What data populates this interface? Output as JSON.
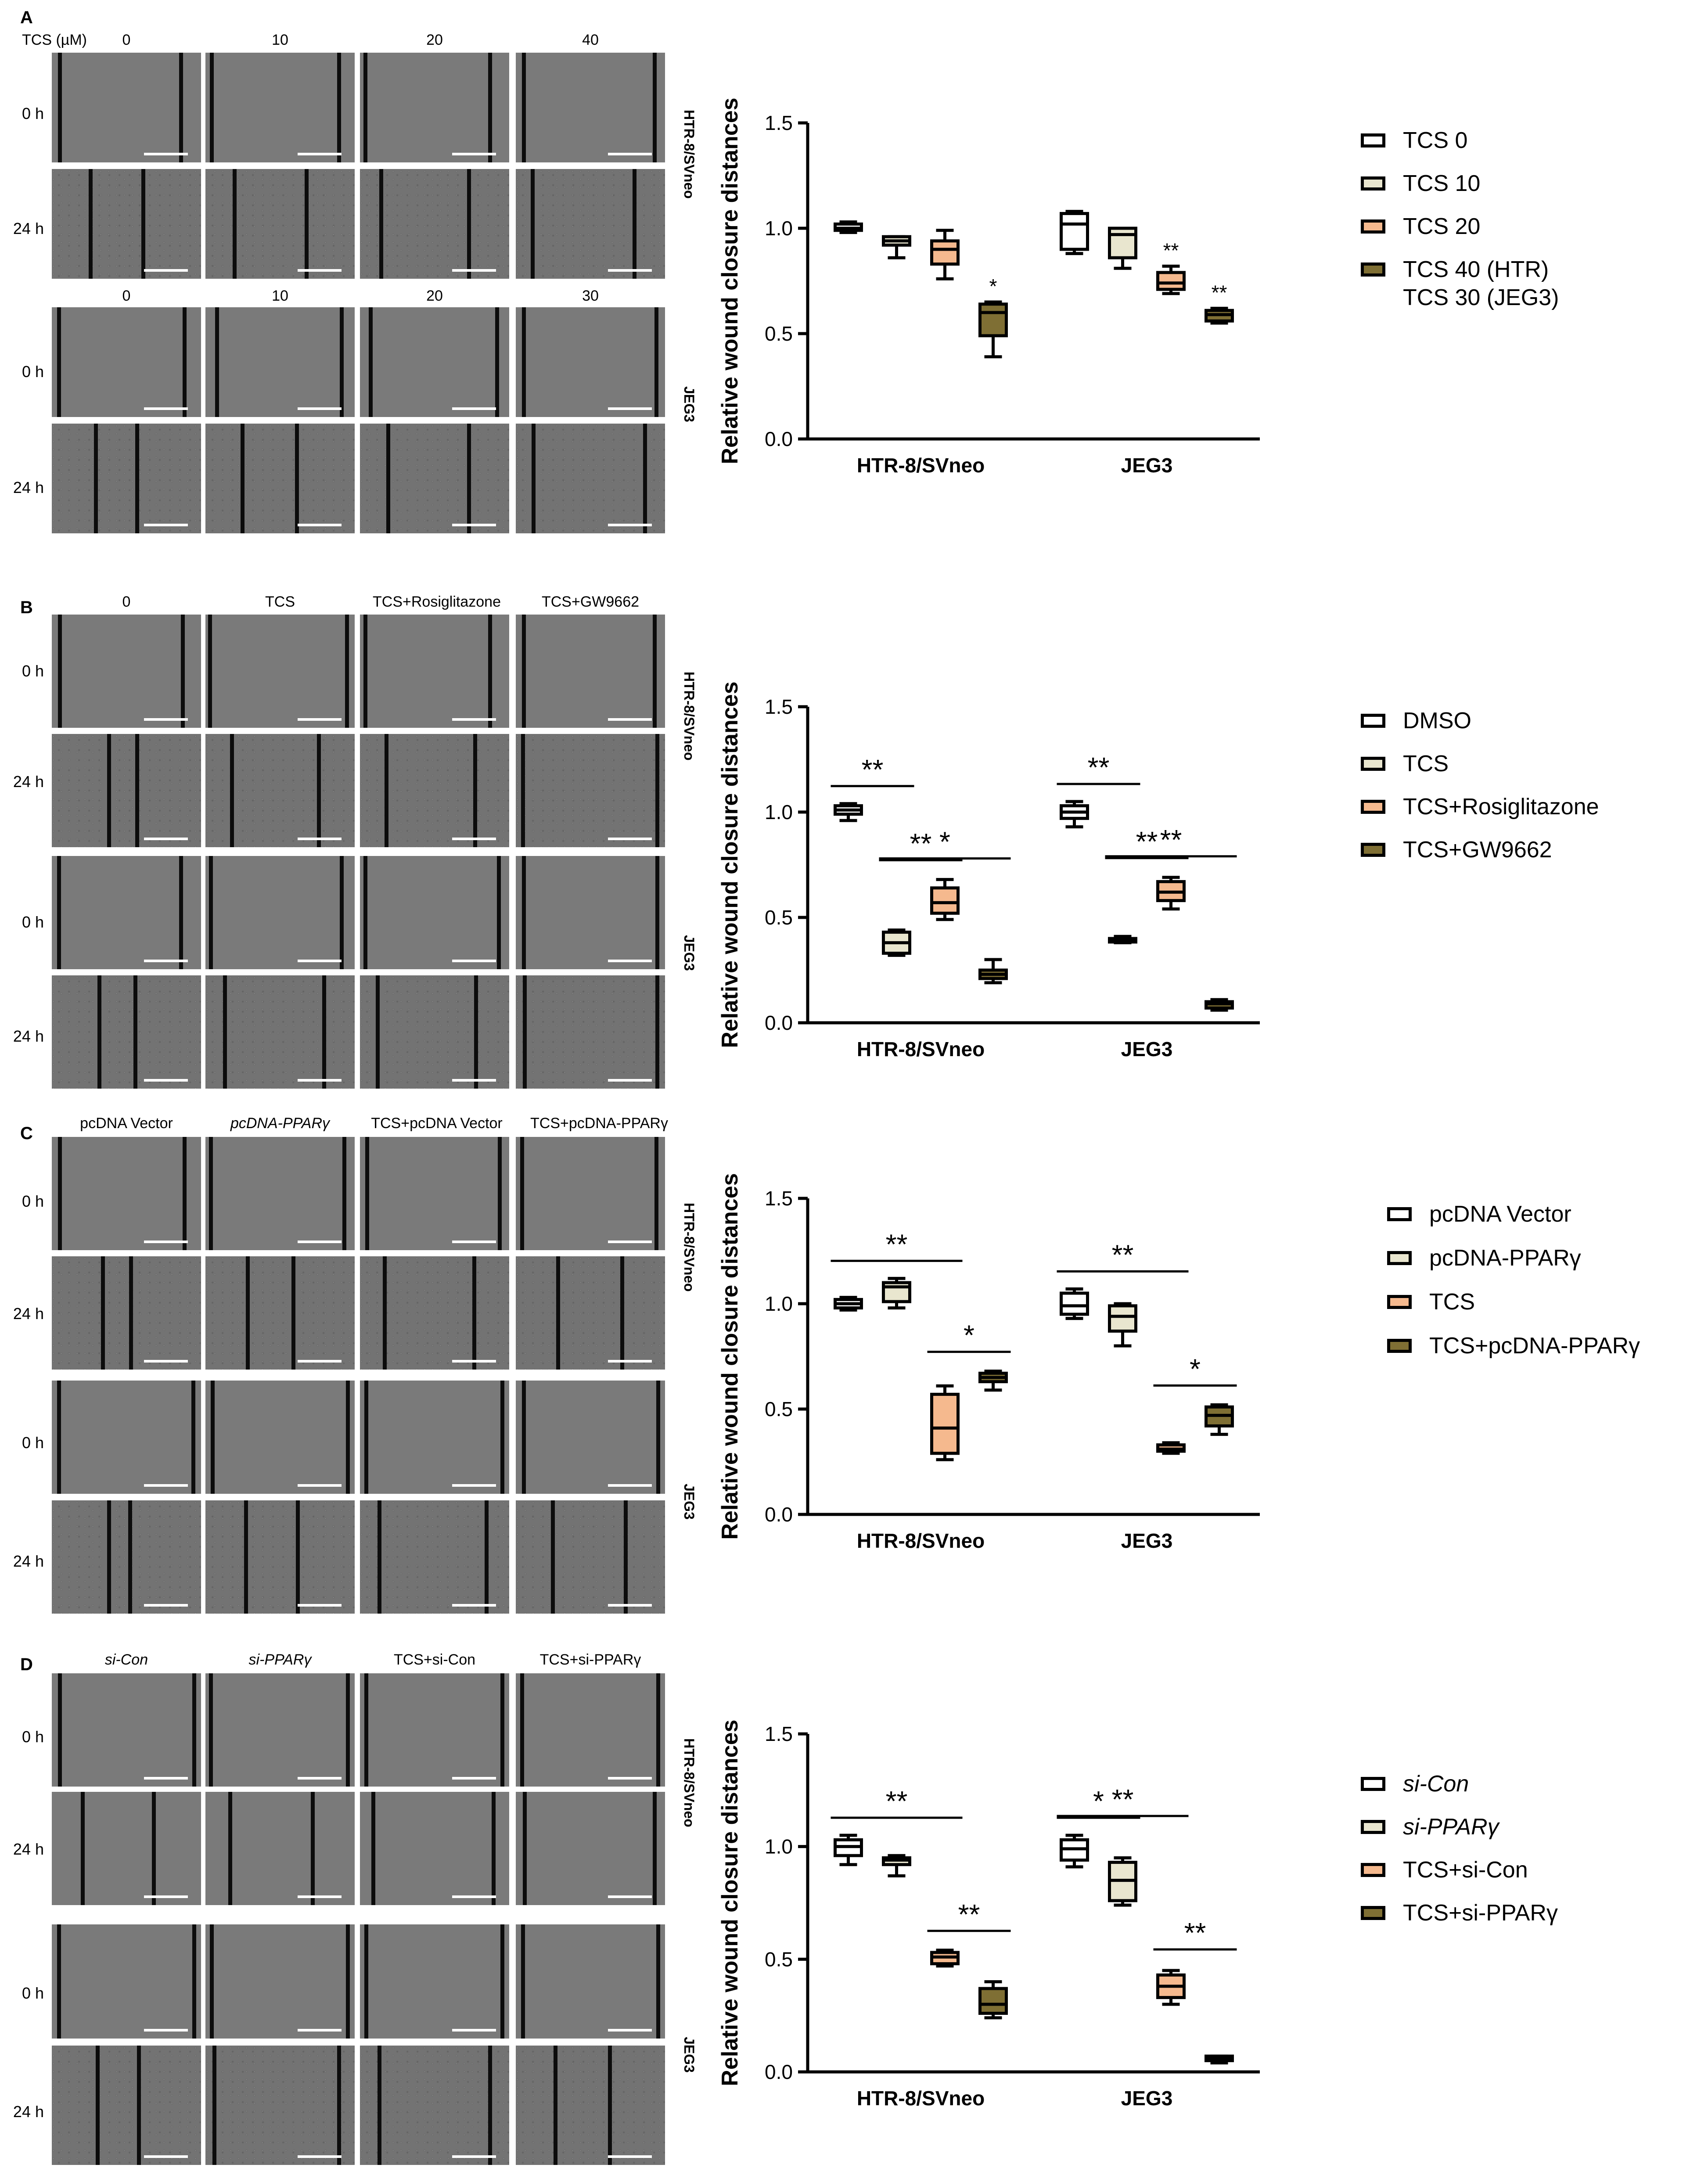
{
  "colors": {
    "tcs0": "#ffffff",
    "tcs10": "#e9e6cf",
    "tcs20": "#f5b98e",
    "tcs40": "#7f6f34",
    "stroke": "#000000"
  },
  "panels": [
    {
      "letter": "A",
      "header_prefix": "TCS (µM)",
      "htr_columns": [
        "0",
        "10",
        "20",
        "40"
      ],
      "jeg_columns": [
        "0",
        "10",
        "20",
        "30"
      ],
      "rows": [
        "0 h",
        "24 h",
        "0 h",
        "24 h"
      ],
      "cell_labels": [
        "HTR-8/SVneo",
        "JEG3"
      ],
      "legend": [
        "TCS 0",
        "TCS 10",
        "TCS 20",
        "TCS 40 (HTR)",
        "TCS 30 (JEG3)"
      ]
    },
    {
      "letter": "B",
      "columns": [
        "0",
        "TCS",
        "TCS+Rosiglitazone",
        "TCS+GW9662"
      ],
      "rows": [
        "0 h",
        "24 h",
        "0 h",
        "24 h"
      ],
      "cell_labels": [
        "HTR-8/SVneo",
        "JEG3"
      ],
      "legend": [
        "DMSO",
        "TCS",
        "TCS+Rosiglitazone",
        "TCS+GW9662"
      ]
    },
    {
      "letter": "C",
      "columns": [
        "pcDNA Vector",
        "pcDNA-PPARγ",
        "TCS+pcDNA Vector",
        "TCS+pcDNA-PPARγ"
      ],
      "rows": [
        "0 h",
        "24 h",
        "0 h",
        "24 h"
      ],
      "cell_labels": [
        "HTR-8/SVneo",
        "JEG3"
      ],
      "legend": [
        "pcDNA Vector",
        "pcDNA-PPARγ",
        "TCS",
        "TCS+pcDNA-PPARγ"
      ]
    },
    {
      "letter": "D",
      "columns": [
        "si-Con",
        "si-PPARγ",
        "TCS+si-Con",
        "TCS+si-PPARγ"
      ],
      "rows": [
        "0 h",
        "24 h",
        "0 h",
        "24 h"
      ],
      "cell_labels": [
        "HTR-8/SVneo",
        "JEG3"
      ],
      "legend": [
        "si-Con",
        "si-PPARγ",
        "TCS+si-Con",
        "TCS+si-PPARγ"
      ]
    }
  ],
  "chart_data": [
    {
      "type": "box",
      "title": "A",
      "ylabel": "Relative wound closure distances",
      "ylim": [
        0,
        1.5
      ],
      "yticks": [
        "0.0",
        "0.5",
        "1.0",
        "1.5"
      ],
      "categories": [
        "HTR-8/SVneo",
        "JEG3"
      ],
      "series": [
        {
          "name": "TCS 0",
          "boxes": [
            {
              "min": 0.98,
              "q1": 0.99,
              "median": 1.0,
              "q3": 1.02,
              "max": 1.03
            },
            {
              "min": 0.88,
              "q1": 0.9,
              "median": 1.02,
              "q3": 1.07,
              "max": 1.08
            }
          ]
        },
        {
          "name": "TCS 10",
          "boxes": [
            {
              "min": 0.86,
              "q1": 0.92,
              "median": 0.94,
              "q3": 0.96,
              "max": 0.96
            },
            {
              "min": 0.81,
              "q1": 0.86,
              "median": 0.97,
              "q3": 1.0,
              "max": 1.0
            }
          ]
        },
        {
          "name": "TCS 20",
          "boxes": [
            {
              "min": 0.76,
              "q1": 0.83,
              "median": 0.9,
              "q3": 0.94,
              "max": 0.99
            },
            {
              "min": 0.69,
              "q1": 0.71,
              "median": 0.74,
              "q3": 0.79,
              "max": 0.82
            }
          ]
        },
        {
          "name": "TCS 40 (HTR) / TCS 30 (JEG3)",
          "boxes": [
            {
              "min": 0.39,
              "q1": 0.49,
              "median": 0.6,
              "q3": 0.64,
              "max": 0.65
            },
            {
              "min": 0.55,
              "q1": 0.56,
              "median": 0.59,
              "q3": 0.61,
              "max": 0.62
            }
          ]
        }
      ],
      "annotations": [
        {
          "text": "*",
          "group": 0,
          "from": 3,
          "to": 3
        },
        {
          "text": "**",
          "group": 1,
          "from": 2,
          "to": 2
        },
        {
          "text": "**",
          "group": 1,
          "from": 3,
          "to": 3
        }
      ]
    },
    {
      "type": "box",
      "title": "B",
      "ylabel": "Relative wound closure distances",
      "ylim": [
        0,
        1.5
      ],
      "yticks": [
        "0.0",
        "0.5",
        "1.0",
        "1.5"
      ],
      "categories": [
        "HTR-8/SVneo",
        "JEG3"
      ],
      "series": [
        {
          "name": "DMSO",
          "boxes": [
            {
              "min": 0.96,
              "q1": 0.99,
              "median": 1.01,
              "q3": 1.03,
              "max": 1.04
            },
            {
              "min": 0.93,
              "q1": 0.97,
              "median": 1.0,
              "q3": 1.03,
              "max": 1.05
            }
          ]
        },
        {
          "name": "TCS",
          "boxes": [
            {
              "min": 0.32,
              "q1": 0.33,
              "median": 0.38,
              "q3": 0.43,
              "max": 0.44
            },
            {
              "min": 0.38,
              "q1": 0.39,
              "median": 0.39,
              "q3": 0.4,
              "max": 0.41
            }
          ]
        },
        {
          "name": "TCS+Rosiglitazone",
          "boxes": [
            {
              "min": 0.49,
              "q1": 0.52,
              "median": 0.57,
              "q3": 0.64,
              "max": 0.68
            },
            {
              "min": 0.54,
              "q1": 0.58,
              "median": 0.62,
              "q3": 0.67,
              "max": 0.69
            }
          ]
        },
        {
          "name": "TCS+GW9662",
          "boxes": [
            {
              "min": 0.19,
              "q1": 0.21,
              "median": 0.23,
              "q3": 0.25,
              "max": 0.3
            },
            {
              "min": 0.06,
              "q1": 0.07,
              "median": 0.09,
              "q3": 0.1,
              "max": 0.11
            }
          ]
        }
      ],
      "annotations": [
        {
          "text": "**",
          "group": 0,
          "from": 0,
          "to": 1
        },
        {
          "text": "**",
          "group": 0,
          "from": 1,
          "to": 2
        },
        {
          "text": "*",
          "group": 0,
          "from": 1,
          "to": 3
        },
        {
          "text": "**",
          "group": 1,
          "from": 0,
          "to": 1
        },
        {
          "text": "**",
          "group": 1,
          "from": 1,
          "to": 2
        },
        {
          "text": "**",
          "group": 1,
          "from": 1,
          "to": 3
        }
      ]
    },
    {
      "type": "box",
      "title": "C",
      "ylabel": "Relative wound closure distances",
      "ylim": [
        0,
        1.5
      ],
      "yticks": [
        "0.0",
        "0.5",
        "1.0",
        "1.5"
      ],
      "categories": [
        "HTR-8/SVneo",
        "JEG3"
      ],
      "series": [
        {
          "name": "pcDNA Vector",
          "boxes": [
            {
              "min": 0.97,
              "q1": 0.98,
              "median": 1.0,
              "q3": 1.02,
              "max": 1.03
            },
            {
              "min": 0.93,
              "q1": 0.95,
              "median": 0.99,
              "q3": 1.05,
              "max": 1.07
            }
          ]
        },
        {
          "name": "pcDNA-PPARγ",
          "boxes": [
            {
              "min": 0.98,
              "q1": 1.01,
              "median": 1.08,
              "q3": 1.1,
              "max": 1.12
            },
            {
              "min": 0.8,
              "q1": 0.87,
              "median": 0.94,
              "q3": 0.99,
              "max": 1.0
            }
          ]
        },
        {
          "name": "TCS",
          "boxes": [
            {
              "min": 0.26,
              "q1": 0.29,
              "median": 0.41,
              "q3": 0.57,
              "max": 0.61
            },
            {
              "min": 0.29,
              "q1": 0.3,
              "median": 0.31,
              "q3": 0.33,
              "max": 0.34
            }
          ]
        },
        {
          "name": "TCS+pcDNA-PPARγ",
          "boxes": [
            {
              "min": 0.59,
              "q1": 0.63,
              "median": 0.65,
              "q3": 0.67,
              "max": 0.68
            },
            {
              "min": 0.38,
              "q1": 0.42,
              "median": 0.47,
              "q3": 0.51,
              "max": 0.52
            }
          ]
        }
      ],
      "annotations": [
        {
          "text": "**",
          "group": 0,
          "from": 0,
          "to": 2
        },
        {
          "text": "*",
          "group": 0,
          "from": 2,
          "to": 3
        },
        {
          "text": "**",
          "group": 1,
          "from": 0,
          "to": 2
        },
        {
          "text": "*",
          "group": 1,
          "from": 2,
          "to": 3
        }
      ]
    },
    {
      "type": "box",
      "title": "D",
      "ylabel": "Relative wound closure distances",
      "ylim": [
        0,
        1.5
      ],
      "yticks": [
        "0.0",
        "0.5",
        "1.0",
        "1.5"
      ],
      "categories": [
        "HTR-8/SVneo",
        "JEG3"
      ],
      "series": [
        {
          "name": "si-Con",
          "boxes": [
            {
              "min": 0.92,
              "q1": 0.96,
              "median": 1.0,
              "q3": 1.03,
              "max": 1.05
            },
            {
              "min": 0.91,
              "q1": 0.94,
              "median": 0.99,
              "q3": 1.03,
              "max": 1.05
            }
          ]
        },
        {
          "name": "si-PPARγ",
          "boxes": [
            {
              "min": 0.87,
              "q1": 0.92,
              "median": 0.94,
              "q3": 0.95,
              "max": 0.96
            },
            {
              "min": 0.74,
              "q1": 0.76,
              "median": 0.85,
              "q3": 0.93,
              "max": 0.95
            }
          ]
        },
        {
          "name": "TCS+si-Con",
          "boxes": [
            {
              "min": 0.47,
              "q1": 0.48,
              "median": 0.51,
              "q3": 0.53,
              "max": 0.54
            },
            {
              "min": 0.3,
              "q1": 0.33,
              "median": 0.38,
              "q3": 0.43,
              "max": 0.45
            }
          ]
        },
        {
          "name": "TCS+si-PPARγ",
          "boxes": [
            {
              "min": 0.24,
              "q1": 0.26,
              "median": 0.3,
              "q3": 0.37,
              "max": 0.4
            },
            {
              "min": 0.04,
              "q1": 0.05,
              "median": 0.06,
              "q3": 0.07,
              "max": 0.07
            }
          ]
        }
      ],
      "annotations": [
        {
          "text": "**",
          "group": 0,
          "from": 0,
          "to": 2
        },
        {
          "text": "**",
          "group": 0,
          "from": 2,
          "to": 3
        },
        {
          "text": "*",
          "group": 1,
          "from": 0,
          "to": 1
        },
        {
          "text": "**",
          "group": 1,
          "from": 0,
          "to": 2
        },
        {
          "text": "**",
          "group": 1,
          "from": 2,
          "to": 3
        }
      ]
    }
  ]
}
